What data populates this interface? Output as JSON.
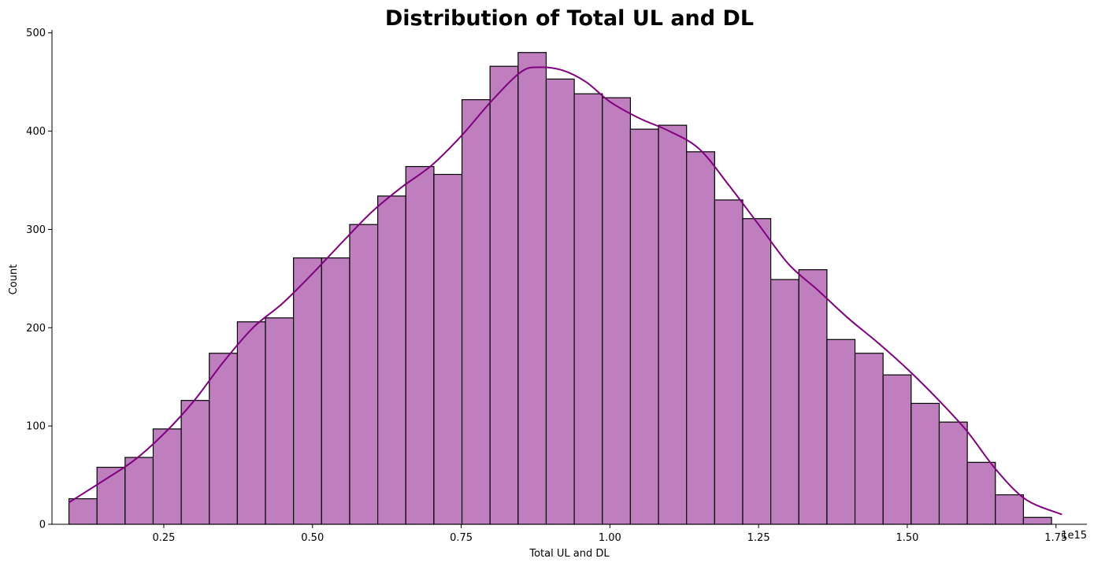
{
  "chart_data": {
    "type": "bar",
    "subtype": "histogram-with-kde",
    "title": "Distribution of Total UL and DL",
    "xlabel": "Total UL and DL",
    "ylabel": "Count",
    "x_offset_label": "1e15",
    "x_unit_multiplier": 1000000000000000.0,
    "xlim": [
      0.062,
      1.802
    ],
    "ylim": [
      0,
      503
    ],
    "xticks": [
      0.25,
      0.5,
      0.75,
      1.0,
      1.25,
      1.5,
      1.75
    ],
    "xtick_labels": [
      "0.25",
      "0.50",
      "0.75",
      "1.00",
      "1.25",
      "1.50",
      "1.75"
    ],
    "yticks": [
      0,
      100,
      200,
      300,
      400,
      500
    ],
    "ytick_labels": [
      "0",
      "100",
      "200",
      "300",
      "400",
      "500"
    ],
    "bins": {
      "start": 0.0905,
      "width": 0.0472,
      "counts": [
        26,
        58,
        68,
        97,
        126,
        174,
        206,
        210,
        271,
        271,
        305,
        334,
        364,
        356,
        432,
        466,
        480,
        453,
        438,
        434,
        402,
        406,
        379,
        330,
        311,
        249,
        259,
        188,
        174,
        152,
        123,
        104,
        63,
        30,
        7
      ]
    },
    "kde": {
      "x": [
        0.09,
        0.15,
        0.2,
        0.25,
        0.3,
        0.35,
        0.4,
        0.45,
        0.5,
        0.55,
        0.6,
        0.65,
        0.7,
        0.75,
        0.8,
        0.85,
        0.88,
        0.92,
        0.96,
        1.0,
        1.05,
        1.1,
        1.15,
        1.2,
        1.25,
        1.3,
        1.35,
        1.4,
        1.45,
        1.5,
        1.55,
        1.6,
        1.65,
        1.7,
        1.76
      ],
      "y": [
        22,
        45,
        65,
        92,
        125,
        165,
        200,
        225,
        255,
        287,
        318,
        343,
        365,
        395,
        430,
        460,
        465,
        462,
        450,
        430,
        413,
        400,
        382,
        345,
        305,
        265,
        238,
        210,
        185,
        158,
        128,
        95,
        55,
        25,
        10
      ]
    },
    "grid": false,
    "legend": "none",
    "colors": {
      "bar_fill": "#bf7fbf",
      "bar_edge": "#000000",
      "kde_line": "#800080"
    }
  }
}
